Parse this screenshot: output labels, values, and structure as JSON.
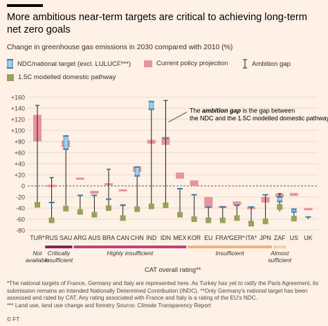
{
  "title": "More ambitious near-term targets are critical to achieving long-term net zero goals",
  "subtitle": "Change in greenhouse gas emissions in 2030 compared with 2010 (%)",
  "legend": {
    "ndc": "NDC/national target (excl. LULUCF***)",
    "policy": "Current policy projection",
    "gap": "Ambition gap",
    "pathway": "1.5C modelled domestic pathway"
  },
  "colors": {
    "background": "#fff1e5",
    "ndc_fill": "#9dd2ec",
    "ndc_outline": "#3b7fa8",
    "policy": "#e8949a",
    "pathway": "#96a35a",
    "gap_line": "#1a1a1a",
    "critically_insufficient": "#8b2252",
    "highly_insufficient": "#c0427a",
    "insufficient": "#f3b27c",
    "almost_sufficient": "#f6d0a8"
  },
  "annotation": {
    "text_prefix": "The ",
    "text_emphasis": "ambition gap",
    "text_rest": " is the gap between the NDC and the 1.5C modelled domestic pathway"
  },
  "rating_axis": {
    "label": "CAT overall rating**",
    "groups": [
      {
        "label": "Not available",
        "from": 0,
        "to": 0,
        "color": ""
      },
      {
        "label": "Critically insufficient",
        "from": 1,
        "to": 2,
        "color": "#8b2252"
      },
      {
        "label": "Highly insufficient",
        "from": 3,
        "to": 10,
        "color": "#c0427a"
      },
      {
        "label": "Insufficient",
        "from": 11,
        "to": 16,
        "color": "#f3b27c"
      },
      {
        "label": "Almost sufficient",
        "from": 17,
        "to": 17,
        "color": "#f6d0a8"
      }
    ]
  },
  "chart_data": {
    "type": "range",
    "ylim": [
      -80,
      160
    ],
    "yticks": [
      -80,
      -60,
      -40,
      -20,
      0,
      20,
      40,
      60,
      80,
      100,
      120,
      140,
      160
    ],
    "ytick_labels": [
      "-80",
      "-60",
      "-40",
      "-20",
      "0",
      "+20",
      "+40",
      "+60",
      "+80",
      "+100",
      "+120",
      "+140",
      "+160"
    ],
    "grid": true,
    "countries": [
      {
        "code": "TUR*",
        "ndc": null,
        "policy": [
          80,
          128
        ],
        "gap": [
          -33,
          145
        ],
        "pathway": -34
      },
      {
        "code": "RUS",
        "ndc": [
          -30,
          -30
        ],
        "policy": [
          -2,
          2
        ],
        "gap": [
          -62,
          15
        ],
        "pathway": -62
      },
      {
        "code": "SAU",
        "ndc": [
          66,
          90
        ],
        "policy": [
          70,
          82
        ],
        "gap": [
          -40,
          90
        ],
        "pathway": -41
      },
      {
        "code": "ARG",
        "ndc": [
          -17,
          -17
        ],
        "policy": [
          11,
          13
        ],
        "gap": [
          -47,
          -17
        ],
        "pathway": -47
      },
      {
        "code": "AUS",
        "ndc": [
          -17,
          -17
        ],
        "policy": [
          -14,
          -9
        ],
        "gap": [
          -52,
          -17
        ],
        "pathway": -52
      },
      {
        "code": "BRA",
        "ndc": [
          -24,
          -24
        ],
        "policy": [
          3,
          3
        ],
        "gap": [
          -40,
          30
        ],
        "pathway": -40
      },
      {
        "code": "CAN",
        "ndc": [
          -35,
          -35
        ],
        "policy": [
          -10,
          -8
        ],
        "gap": [
          -58,
          -34
        ],
        "pathway": -58
      },
      {
        "code": "CHN",
        "ndc": [
          18,
          34
        ],
        "policy": [
          25,
          35
        ],
        "gap": [
          -42,
          34
        ],
        "pathway": -42
      },
      {
        "code": "IND",
        "ndc": [
          138,
          152
        ],
        "policy": [
          76,
          83
        ],
        "gap": [
          -37,
          152
        ],
        "pathway": -37
      },
      {
        "code": "IDN",
        "ndc": [
          86,
          86
        ],
        "policy": [
          74,
          88
        ],
        "gap": [
          -35,
          154
        ],
        "pathway": -35
      },
      {
        "code": "MEX",
        "ndc": [
          -5,
          -5
        ],
        "policy": [
          13,
          24
        ],
        "gap": [
          -52,
          -5
        ],
        "pathway": -52
      },
      {
        "code": "KOR",
        "ndc": [
          -16,
          -16
        ],
        "policy": [
          0,
          10
        ],
        "gap": [
          -60,
          -16
        ],
        "pathway": -60
      },
      {
        "code": "EU",
        "ndc": [
          -38,
          -38
        ],
        "policy": [
          -40,
          -20
        ],
        "gap": [
          -62,
          -38
        ],
        "pathway": -62
      },
      {
        "code": "FRA*",
        "ndc": [
          -38,
          -38
        ],
        "policy": [
          -38,
          -38
        ],
        "gap": [
          -62,
          -38
        ],
        "pathway": -62
      },
      {
        "code": "GER*",
        "ndc": [
          -35,
          -35
        ],
        "policy": [
          -34,
          -28
        ],
        "gap": [
          -58,
          -35
        ],
        "pathway": -58
      },
      {
        "code": "ITA*",
        "ndc": [
          -38,
          -38
        ],
        "policy": [
          -42,
          -38
        ],
        "gap": [
          -68,
          -38
        ],
        "pathway": -68
      },
      {
        "code": "JPN",
        "ndc": [
          -16,
          -16
        ],
        "policy": [
          -30,
          -20
        ],
        "gap": [
          -64,
          -16
        ],
        "pathway": -64
      },
      {
        "code": "ZAF",
        "ndc": [
          -28,
          -20
        ],
        "policy": [
          -20,
          -14
        ],
        "gap": [
          -46,
          -14
        ],
        "pathway": -38
      },
      {
        "code": "US",
        "ndc": [
          -47,
          -42
        ],
        "policy": [
          -18,
          -13
        ],
        "gap": [
          -59,
          -42
        ],
        "pathway": -59
      },
      {
        "code": "UK",
        "ndc": [
          -56,
          -56
        ],
        "policy": [
          -44,
          -40
        ],
        "gap": [
          -60,
          -56
        ],
        "pathway": null
      }
    ]
  },
  "notes": [
    "*The national targets of France, Germany and Italy are represented here. As Turkey has yet to ratify the Paris Agreement, its submission remains an Intended Nationally Determined Contribution (INDC). **Only Germany's national target has been assessed and rated by CAT. Any rating associated with France and Italy is a rating of the EU's NDC.",
    "*** Land use, land use change and forestry   Source: Climate Transparency Report"
  ],
  "footer": "© FT"
}
